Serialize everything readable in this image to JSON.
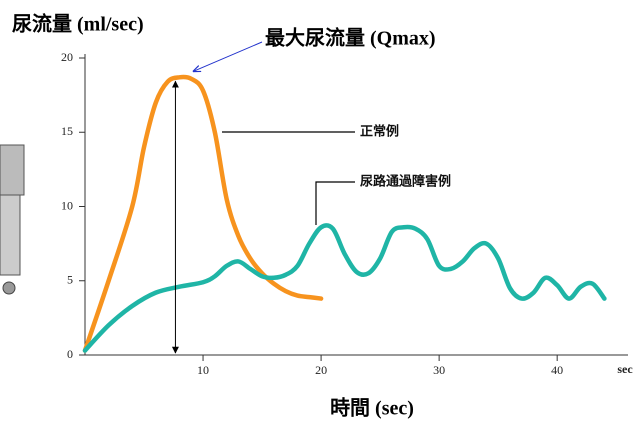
{
  "chart_data": {
    "type": "line",
    "y_axis_label": "尿流量 (ml/sec)",
    "x_axis_label": "時間 (sec)",
    "x_axis_end_label": "sec",
    "annotation": "最大尿流量 (Qmax)",
    "xlim": [
      0,
      46
    ],
    "ylim": [
      0,
      20
    ],
    "xticks": [
      10,
      20,
      30,
      40
    ],
    "yticks": [
      0,
      5,
      10,
      15,
      20
    ],
    "series": [
      {
        "name": "正常例",
        "color": "#f7931e",
        "x": [
          0,
          2,
          4,
          5,
          6,
          7,
          8,
          9,
          10,
          11,
          12,
          13,
          14,
          15,
          16,
          17,
          18,
          19,
          20
        ],
        "values": [
          0.3,
          5,
          10,
          14,
          17,
          18.4,
          18.7,
          18.6,
          17.8,
          15,
          10.5,
          8,
          6.5,
          5.5,
          4.8,
          4.3,
          4,
          3.9,
          3.8
        ]
      },
      {
        "name": "尿路通過障害例",
        "color": "#1fb5a6",
        "x": [
          0,
          2,
          4,
          6,
          8,
          10,
          11,
          12,
          13,
          14,
          15,
          16,
          17,
          18,
          19,
          20,
          21,
          22,
          23,
          24,
          25,
          26,
          27,
          28,
          29,
          30,
          31,
          32,
          33,
          34,
          35,
          36,
          37,
          38,
          39,
          40,
          41,
          42,
          43,
          44
        ],
        "values": [
          0.3,
          2,
          3.3,
          4.2,
          4.6,
          4.9,
          5.3,
          6,
          6.3,
          5.8,
          5.3,
          5.2,
          5.4,
          6,
          7.5,
          8.6,
          8.5,
          6.8,
          5.6,
          5.5,
          6.5,
          8.3,
          8.6,
          8.5,
          7.8,
          6,
          5.8,
          6.3,
          7.2,
          7.5,
          6.5,
          4.5,
          3.8,
          4.2,
          5.2,
          4.7,
          3.8,
          4.6,
          4.8,
          3.8
        ]
      }
    ]
  }
}
